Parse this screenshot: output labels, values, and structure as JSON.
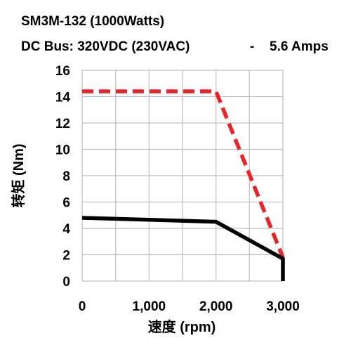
{
  "header": {
    "title": "SM3M-132 (1000Watts)",
    "bus_label": "DC Bus: 320VDC (230VAC)",
    "separator": "-",
    "amps": "5.6 Amps"
  },
  "chart_data": {
    "type": "line",
    "xlabel": "速度 (rpm)",
    "ylabel": "转矩 (Nm)",
    "xlim": [
      0,
      3000
    ],
    "ylim": [
      0,
      16
    ],
    "x_ticks": [
      0,
      1000,
      2000,
      3000
    ],
    "x_tick_labels": [
      "0",
      "1,000",
      "2,000",
      "3,000"
    ],
    "y_ticks": [
      0,
      2,
      4,
      6,
      8,
      10,
      12,
      14,
      16
    ],
    "y_tick_labels": [
      "0",
      "2",
      "4",
      "6",
      "8",
      "10",
      "12",
      "14",
      "16"
    ],
    "grid": true,
    "legend": false,
    "series": [
      {
        "style": "dashed",
        "color": "#e8242b",
        "points": [
          [
            0,
            14.4
          ],
          [
            2000,
            14.4
          ],
          [
            3000,
            1.8
          ]
        ]
      },
      {
        "style": "solid",
        "color": "#000000",
        "points": [
          [
            0,
            4.8
          ],
          [
            2000,
            4.5
          ],
          [
            3000,
            1.7
          ],
          [
            3000,
            0
          ]
        ]
      }
    ]
  }
}
